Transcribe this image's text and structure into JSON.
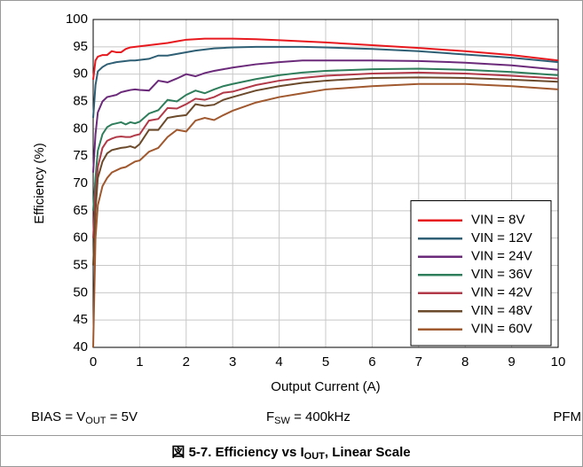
{
  "chart_data": {
    "type": "line",
    "xlabel": "Output Current (A)",
    "ylabel": "Efficiency (%)",
    "xlim": [
      0,
      10
    ],
    "ylim": [
      40,
      100
    ],
    "xticks": [
      0,
      1,
      2,
      3,
      4,
      5,
      6,
      7,
      8,
      9,
      10
    ],
    "yticks": [
      40,
      45,
      50,
      55,
      60,
      65,
      70,
      75,
      80,
      85,
      90,
      95,
      100
    ],
    "grid": true,
    "legend": "lower right",
    "x": [
      0,
      0.05,
      0.1,
      0.2,
      0.3,
      0.4,
      0.5,
      0.6,
      0.7,
      0.8,
      0.9,
      1.0,
      1.2,
      1.4,
      1.6,
      1.8,
      2.0,
      2.2,
      2.4,
      2.6,
      2.8,
      3.0,
      3.5,
      4,
      4.5,
      5,
      6,
      7,
      8,
      9,
      10
    ],
    "series": [
      {
        "name": "VIN = 8V",
        "color": "#e8191e",
        "values": [
          89,
          92.5,
          93.2,
          93.5,
          93.5,
          94.2,
          94,
          94,
          94.6,
          94.9,
          95,
          95.1,
          95.3,
          95.5,
          95.7,
          96,
          96.3,
          96.4,
          96.5,
          96.5,
          96.5,
          96.5,
          96.4,
          96.2,
          96,
          95.8,
          95.3,
          94.8,
          94.2,
          93.5,
          92.5
        ]
      },
      {
        "name": "VIN = 12V",
        "color": "#2e5f74",
        "values": [
          82,
          88,
          90.5,
          91.3,
          91.8,
          92,
          92.2,
          92.3,
          92.4,
          92.5,
          92.5,
          92.6,
          92.8,
          93.4,
          93.4,
          93.7,
          94,
          94.3,
          94.5,
          94.7,
          94.8,
          94.9,
          95,
          95,
          95,
          94.9,
          94.6,
          94.2,
          93.6,
          93,
          92.2
        ]
      },
      {
        "name": "VIN = 24V",
        "color": "#6b2a7a",
        "values": [
          72,
          79,
          83,
          85,
          85.8,
          86,
          86.2,
          86.7,
          86.9,
          87.1,
          87.2,
          87.1,
          87,
          88.8,
          88.5,
          89.2,
          90,
          89.6,
          90.2,
          90.6,
          90.9,
          91.2,
          91.8,
          92.2,
          92.5,
          92.5,
          92.5,
          92.4,
          92.1,
          91.6,
          90.8
        ]
      },
      {
        "name": "VIN = 36V",
        "color": "#2e7d5b",
        "values": [
          65,
          71,
          76,
          79,
          80.3,
          80.8,
          81,
          81.2,
          80.8,
          81.2,
          81,
          81.3,
          82.8,
          83.4,
          85.3,
          85,
          86.2,
          87,
          86.5,
          87.2,
          87.8,
          88.2,
          89.1,
          89.8,
          90.3,
          90.6,
          90.9,
          91,
          90.8,
          90.4,
          89.8
        ]
      },
      {
        "name": "VIN = 42V",
        "color": "#b23a48",
        "values": [
          60,
          68,
          73,
          76.5,
          77.8,
          78.2,
          78.5,
          78.6,
          78.5,
          78.5,
          78.8,
          79,
          81.5,
          81.8,
          83.8,
          83.7,
          84.5,
          85.5,
          85.3,
          85.8,
          86.6,
          86.8,
          88,
          88.8,
          89.3,
          89.7,
          90.1,
          90.3,
          90.1,
          89.7,
          89.2
        ]
      },
      {
        "name": "VIN = 48V",
        "color": "#6b4a2b",
        "values": [
          55,
          65,
          71,
          74,
          75.5,
          76.1,
          76.3,
          76.5,
          76.6,
          76.8,
          76.5,
          77.2,
          79.8,
          79.8,
          82,
          82.3,
          82.5,
          84.5,
          84.2,
          84.4,
          85.3,
          85.8,
          87,
          87.8,
          88.4,
          88.8,
          89.3,
          89.4,
          89.3,
          89,
          88.6
        ]
      },
      {
        "name": "VIN = 60V",
        "color": "#a0582e",
        "values": [
          40,
          60,
          66,
          69.5,
          71,
          72,
          72.4,
          72.8,
          73,
          73.5,
          74,
          74.2,
          75.8,
          76.5,
          78.5,
          79.8,
          79.5,
          81.5,
          82,
          81.6,
          82.5,
          83.3,
          84.8,
          85.8,
          86.5,
          87.2,
          87.8,
          88.2,
          88.2,
          87.8,
          87.2
        ]
      }
    ],
    "notes": [
      [
        "BIAS = V",
        "OUT",
        " = 5V"
      ],
      [
        "F",
        "SW",
        " = 400kHz"
      ],
      [
        "PFM"
      ]
    ],
    "caption": [
      "図 5-7. Efficiency vs I",
      "OUT",
      ", Linear Scale"
    ]
  }
}
